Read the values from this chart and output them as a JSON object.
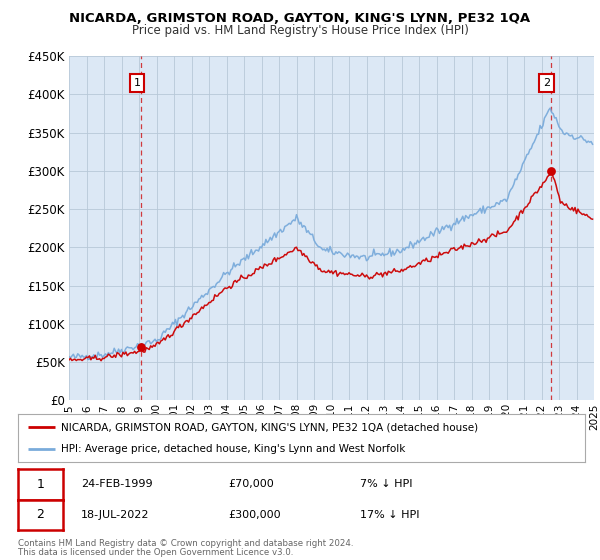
{
  "title": "NICARDA, GRIMSTON ROAD, GAYTON, KING'S LYNN, PE32 1QA",
  "subtitle": "Price paid vs. HM Land Registry's House Price Index (HPI)",
  "legend_label_red": "NICARDA, GRIMSTON ROAD, GAYTON, KING'S LYNN, PE32 1QA (detached house)",
  "legend_label_blue": "HPI: Average price, detached house, King's Lynn and West Norfolk",
  "annotation1_date": "24-FEB-1999",
  "annotation1_price": "£70,000",
  "annotation1_hpi": "7% ↓ HPI",
  "annotation2_date": "18-JUL-2022",
  "annotation2_price": "£300,000",
  "annotation2_hpi": "17% ↓ HPI",
  "footnote1": "Contains HM Land Registry data © Crown copyright and database right 2024.",
  "footnote2": "This data is licensed under the Open Government Licence v3.0.",
  "plot_bg_color": "#dce8f5",
  "red_color": "#cc0000",
  "blue_color": "#7aabdb",
  "sale1_year": 1999.13,
  "sale1_value": 70000,
  "sale2_year": 2022.54,
  "sale2_value": 300000,
  "ylim": [
    0,
    450000
  ],
  "xlim_start": 1995,
  "xlim_end": 2025
}
